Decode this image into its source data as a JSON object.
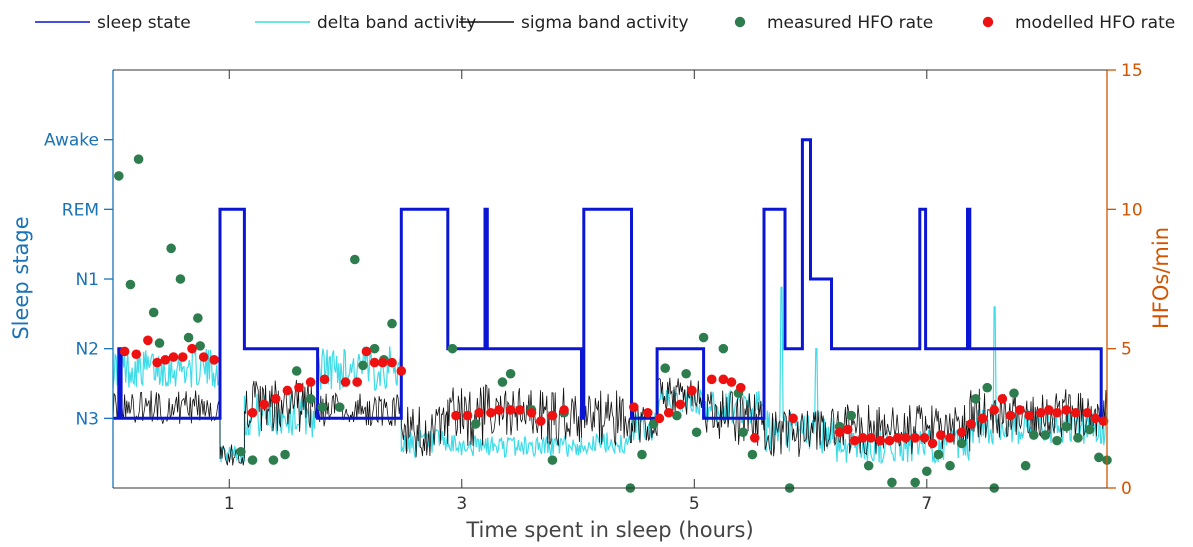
{
  "chart_data": {
    "type": "line",
    "xlabel": "Time spent in sleep (hours)",
    "ylabel_left": "Sleep stage",
    "ylabel_right": "HFOs/min",
    "xlim": [
      0,
      8.55
    ],
    "ylim_right": [
      0,
      15
    ],
    "x_ticks": [
      1,
      3,
      5,
      7
    ],
    "y_ticks_right": [
      0,
      5,
      10,
      15
    ],
    "left_categories": [
      "N3",
      "N2",
      "N1",
      "REM",
      "Awake"
    ],
    "left_category_values": [
      2.5,
      5,
      7.5,
      10,
      12.5
    ],
    "colors": {
      "sleep_state": "#0a16d4",
      "delta": "#3fdce8",
      "sigma": "#111111",
      "measured": "#2e7d4f",
      "modelled": "#ee1111",
      "left_axis": "#1a73b8",
      "right_axis": "#d35400"
    },
    "legend": {
      "position": "top",
      "entries": [
        {
          "label": "sleep state",
          "kind": "line",
          "color": "#0a16d4"
        },
        {
          "label": "delta band activity",
          "kind": "line",
          "color": "#3fdce8"
        },
        {
          "label": "sigma band activity",
          "kind": "line",
          "color": "#111111"
        },
        {
          "label": "measured HFO rate",
          "kind": "marker",
          "color": "#2e7d4f"
        },
        {
          "label": "modelled HFO rate",
          "kind": "marker",
          "color": "#ee1111"
        }
      ]
    },
    "series": [
      {
        "name": "sleep state",
        "kind": "step",
        "segments": [
          [
            0,
            2.5,
            0.05
          ],
          [
            0.05,
            5,
            0.07
          ],
          [
            0.07,
            2.5,
            0.92
          ],
          [
            0.92,
            10,
            1.13
          ],
          [
            1.13,
            5,
            1.76
          ],
          [
            1.76,
            2.5,
            2.48
          ],
          [
            2.48,
            10,
            2.88
          ],
          [
            2.88,
            5,
            3.2
          ],
          [
            3.2,
            10,
            3.22
          ],
          [
            3.22,
            5,
            4.03
          ],
          [
            4.03,
            2.5,
            4.05
          ],
          [
            4.05,
            10,
            4.46
          ],
          [
            4.46,
            2.5,
            4.68
          ],
          [
            4.68,
            5,
            5.08
          ],
          [
            5.08,
            2.5,
            5.6
          ],
          [
            5.6,
            10,
            5.78
          ],
          [
            5.78,
            5,
            5.93
          ],
          [
            5.93,
            12.5,
            6.0
          ],
          [
            6.0,
            7.5,
            6.18
          ],
          [
            6.18,
            5,
            6.94
          ],
          [
            6.94,
            10,
            6.99
          ],
          [
            6.99,
            5,
            7.35
          ],
          [
            7.35,
            10,
            7.37
          ],
          [
            7.37,
            5,
            8.5
          ],
          [
            8.5,
            2.5,
            8.55
          ]
        ]
      },
      {
        "name": "delta band activity",
        "kind": "noisy",
        "segments": [
          [
            0,
            0.92,
            4.3,
            0.7
          ],
          [
            0.92,
            1.13,
            1.3,
            0.4
          ],
          [
            1.13,
            1.76,
            2.6,
            0.8
          ],
          [
            1.76,
            2.48,
            4.3,
            0.8
          ],
          [
            2.48,
            2.88,
            1.6,
            0.5
          ],
          [
            2.88,
            4.03,
            1.5,
            0.4
          ],
          [
            4.03,
            4.46,
            1.6,
            0.4
          ],
          [
            4.46,
            4.68,
            2.2,
            0.6
          ],
          [
            4.68,
            5.08,
            3.1,
            0.5
          ],
          [
            5.08,
            5.6,
            2.9,
            0.6
          ],
          [
            5.6,
            6.2,
            2.0,
            0.8
          ],
          [
            6.2,
            7.37,
            1.5,
            0.6
          ],
          [
            7.37,
            8.55,
            2.2,
            0.7
          ]
        ],
        "spikes": [
          [
            5.75,
            7.2
          ],
          [
            6.05,
            5.0
          ],
          [
            7.58,
            6.5
          ]
        ]
      },
      {
        "name": "sigma band activity",
        "kind": "noisy",
        "segments": [
          [
            0,
            0.92,
            2.9,
            0.6
          ],
          [
            0.92,
            1.13,
            1.2,
            0.4
          ],
          [
            1.13,
            1.76,
            2.9,
            1.0
          ],
          [
            1.76,
            2.48,
            2.8,
            0.6
          ],
          [
            2.48,
            2.88,
            2.0,
            1.0
          ],
          [
            2.88,
            4.03,
            2.6,
            1.1
          ],
          [
            4.03,
            4.46,
            2.5,
            1.0
          ],
          [
            4.46,
            4.68,
            2.3,
            0.7
          ],
          [
            4.68,
            5.08,
            3.3,
            0.7
          ],
          [
            5.08,
            5.6,
            2.5,
            1.0
          ],
          [
            5.6,
            6.2,
            2.0,
            0.9
          ],
          [
            6.2,
            7.37,
            2.1,
            0.9
          ],
          [
            7.37,
            8.55,
            2.7,
            0.9
          ]
        ]
      },
      {
        "name": "measured HFO rate",
        "kind": "scatter",
        "points": [
          [
            0.05,
            11.2
          ],
          [
            0.22,
            11.8
          ],
          [
            0.15,
            7.3
          ],
          [
            0.35,
            6.3
          ],
          [
            0.5,
            8.6
          ],
          [
            0.58,
            7.5
          ],
          [
            0.73,
            6.1
          ],
          [
            0.65,
            5.4
          ],
          [
            0.4,
            5.2
          ],
          [
            0.75,
            5.1
          ],
          [
            1.1,
            1.3
          ],
          [
            1.2,
            1.0
          ],
          [
            1.38,
            1.0
          ],
          [
            1.48,
            1.2
          ],
          [
            1.58,
            4.2
          ],
          [
            1.7,
            3.2
          ],
          [
            1.8,
            2.9
          ],
          [
            1.95,
            2.9
          ],
          [
            2.08,
            8.2
          ],
          [
            2.15,
            4.4
          ],
          [
            2.25,
            5.0
          ],
          [
            2.33,
            4.6
          ],
          [
            2.4,
            5.9
          ],
          [
            2.92,
            5.0
          ],
          [
            3.12,
            2.3
          ],
          [
            3.35,
            3.8
          ],
          [
            3.42,
            4.1
          ],
          [
            3.6,
            2.8
          ],
          [
            3.78,
            1.0
          ],
          [
            3.88,
            2.7
          ],
          [
            4.45,
            0.0
          ],
          [
            4.55,
            1.2
          ],
          [
            4.65,
            2.3
          ],
          [
            4.75,
            4.3
          ],
          [
            4.85,
            2.6
          ],
          [
            4.93,
            4.1
          ],
          [
            5.02,
            2.0
          ],
          [
            5.08,
            5.4
          ],
          [
            5.25,
            5.0
          ],
          [
            5.38,
            3.4
          ],
          [
            5.42,
            2.0
          ],
          [
            5.5,
            1.2
          ],
          [
            5.82,
            0.0
          ],
          [
            6.25,
            2.2
          ],
          [
            6.35,
            2.6
          ],
          [
            6.5,
            0.8
          ],
          [
            6.7,
            0.2
          ],
          [
            6.9,
            0.2
          ],
          [
            7.0,
            0.6
          ],
          [
            7.1,
            1.2
          ],
          [
            7.2,
            0.8
          ],
          [
            7.3,
            1.6
          ],
          [
            7.42,
            3.2
          ],
          [
            7.52,
            3.6
          ],
          [
            7.58,
            0.0
          ],
          [
            7.75,
            3.4
          ],
          [
            7.85,
            0.8
          ],
          [
            7.92,
            1.9
          ],
          [
            8.02,
            1.9
          ],
          [
            8.12,
            1.7
          ],
          [
            8.2,
            2.2
          ],
          [
            8.3,
            1.8
          ],
          [
            8.4,
            2.1
          ],
          [
            8.48,
            1.1
          ],
          [
            8.55,
            1.0
          ]
        ]
      },
      {
        "name": "modelled HFO rate",
        "kind": "scatter",
        "points": [
          [
            0.1,
            4.9
          ],
          [
            0.2,
            4.8
          ],
          [
            0.3,
            5.3
          ],
          [
            0.38,
            4.5
          ],
          [
            0.45,
            4.6
          ],
          [
            0.52,
            4.7
          ],
          [
            0.6,
            4.7
          ],
          [
            0.68,
            5.0
          ],
          [
            0.78,
            4.7
          ],
          [
            0.87,
            4.6
          ],
          [
            1.2,
            2.7
          ],
          [
            1.3,
            3.0
          ],
          [
            1.4,
            3.2
          ],
          [
            1.5,
            3.5
          ],
          [
            1.6,
            3.6
          ],
          [
            1.7,
            3.8
          ],
          [
            1.82,
            3.9
          ],
          [
            2.0,
            3.8
          ],
          [
            2.1,
            3.8
          ],
          [
            2.18,
            4.9
          ],
          [
            2.25,
            4.5
          ],
          [
            2.32,
            4.5
          ],
          [
            2.4,
            4.5
          ],
          [
            2.48,
            4.2
          ],
          [
            2.95,
            2.6
          ],
          [
            3.05,
            2.6
          ],
          [
            3.15,
            2.7
          ],
          [
            3.25,
            2.7
          ],
          [
            3.32,
            2.8
          ],
          [
            3.42,
            2.8
          ],
          [
            3.5,
            2.8
          ],
          [
            3.6,
            2.7
          ],
          [
            3.68,
            2.4
          ],
          [
            3.78,
            2.6
          ],
          [
            3.88,
            2.8
          ],
          [
            4.48,
            2.9
          ],
          [
            4.6,
            2.7
          ],
          [
            4.7,
            2.5
          ],
          [
            4.78,
            2.7
          ],
          [
            4.88,
            3.0
          ],
          [
            4.98,
            3.5
          ],
          [
            5.15,
            3.9
          ],
          [
            5.25,
            3.9
          ],
          [
            5.32,
            3.8
          ],
          [
            5.4,
            3.6
          ],
          [
            5.52,
            1.8
          ],
          [
            5.85,
            2.5
          ],
          [
            6.25,
            2.0
          ],
          [
            6.32,
            2.1
          ],
          [
            6.38,
            1.7
          ],
          [
            6.45,
            1.8
          ],
          [
            6.52,
            1.8
          ],
          [
            6.6,
            1.7
          ],
          [
            6.68,
            1.7
          ],
          [
            6.75,
            1.8
          ],
          [
            6.82,
            1.8
          ],
          [
            6.9,
            1.8
          ],
          [
            6.98,
            1.8
          ],
          [
            7.05,
            1.6
          ],
          [
            7.12,
            1.9
          ],
          [
            7.2,
            1.8
          ],
          [
            7.3,
            2.0
          ],
          [
            7.38,
            2.3
          ],
          [
            7.48,
            2.5
          ],
          [
            7.58,
            2.8
          ],
          [
            7.65,
            3.2
          ],
          [
            7.72,
            2.6
          ],
          [
            7.8,
            2.8
          ],
          [
            7.88,
            2.6
          ],
          [
            7.98,
            2.7
          ],
          [
            8.05,
            2.8
          ],
          [
            8.12,
            2.7
          ],
          [
            8.2,
            2.8
          ],
          [
            8.28,
            2.7
          ],
          [
            8.38,
            2.7
          ],
          [
            8.45,
            2.5
          ],
          [
            8.52,
            2.4
          ]
        ]
      }
    ]
  }
}
